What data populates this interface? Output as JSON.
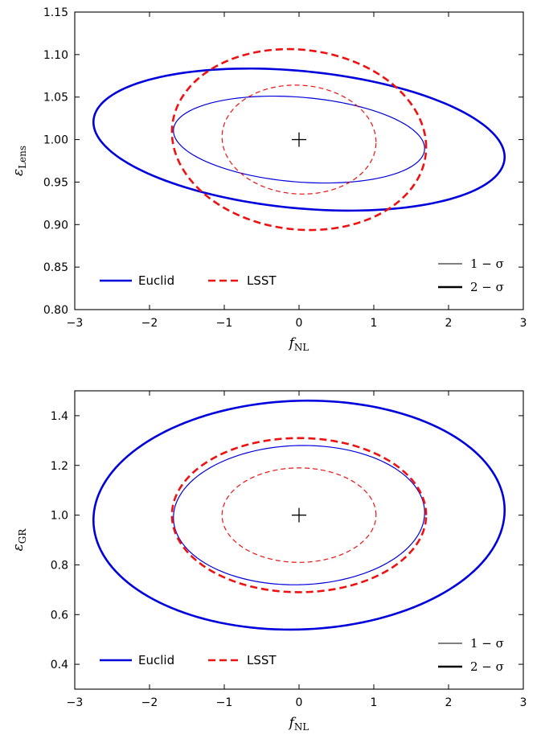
{
  "chart_data": [
    {
      "type": "contour",
      "xlabel": "f_NL",
      "xlabel_main": "f",
      "xlabel_sub": "NL",
      "ylabel": "ε_Lens",
      "ylabel_main": "ε",
      "ylabel_sub": "Lens",
      "xlim": [
        -3,
        3
      ],
      "ylim": [
        0.8,
        1.15
      ],
      "xticks": [
        -3,
        -2,
        -1,
        0,
        1,
        2,
        3
      ],
      "yticks": [
        0.8,
        0.85,
        0.9,
        0.95,
        1.0,
        1.05,
        1.1,
        1.15
      ],
      "ytick_decimals": 2,
      "fiducial": {
        "x": 0,
        "y": 1.0
      },
      "legend": {
        "position": "lower-left",
        "entries": [
          {
            "label": "Euclid",
            "color": "#0000dd",
            "style": "solid"
          },
          {
            "label": "LSST",
            "color": "#ee1111",
            "style": "dashed"
          }
        ]
      },
      "sigma_legend": {
        "position": "lower-right",
        "entries": [
          {
            "label": "1 − σ",
            "weight": "thin"
          },
          {
            "label": "2 − σ",
            "weight": "thick"
          }
        ]
      },
      "series": [
        {
          "survey": "Euclid",
          "sigma": 2,
          "color": "#0000dd",
          "style": "solid",
          "x_range": [
            -2.75,
            2.75
          ],
          "y_range": [
            0.919,
            1.081
          ],
          "y_at_x_extremes": [
            1.021,
            0.98
          ]
        },
        {
          "survey": "Euclid",
          "sigma": 1,
          "color": "#0000dd",
          "style": "solid",
          "x_range": [
            -1.68,
            1.68
          ],
          "y_range": [
            0.95,
            1.05
          ],
          "y_at_x_extremes": [
            1.01,
            0.989
          ]
        },
        {
          "survey": "LSST",
          "sigma": 2,
          "color": "#ee1111",
          "style": "dashed",
          "x_range": [
            -1.7,
            1.7
          ],
          "y_range": [
            0.894,
            1.106
          ],
          "y_at_x_extremes": [
            1.009,
            0.991
          ]
        },
        {
          "survey": "LSST",
          "sigma": 1,
          "color": "#ee1111",
          "style": "dashed",
          "x_range": [
            -1.03,
            1.03
          ],
          "y_range": [
            0.936,
            1.064
          ],
          "y_at_x_extremes": [
            1.003,
            0.997
          ]
        }
      ]
    },
    {
      "type": "contour",
      "xlabel": "f_NL",
      "xlabel_main": "f",
      "xlabel_sub": "NL",
      "ylabel": "ε_GR",
      "ylabel_main": "ε",
      "ylabel_sub": "GR",
      "xlim": [
        -3,
        3
      ],
      "ylim": [
        0.3,
        1.5
      ],
      "xticks": [
        -3,
        -2,
        -1,
        0,
        1,
        2,
        3
      ],
      "yticks": [
        0.4,
        0.6,
        0.8,
        1.0,
        1.2,
        1.4
      ],
      "ytick_decimals": 1,
      "fiducial": {
        "x": 0,
        "y": 1.0
      },
      "legend": {
        "position": "lower-left",
        "entries": [
          {
            "label": "Euclid",
            "color": "#0000dd",
            "style": "solid"
          },
          {
            "label": "LSST",
            "color": "#ee1111",
            "style": "dashed"
          }
        ]
      },
      "sigma_legend": {
        "position": "lower-right",
        "entries": [
          {
            "label": "1 − σ",
            "weight": "thin"
          },
          {
            "label": "2 − σ",
            "weight": "thick"
          }
        ]
      },
      "series": [
        {
          "survey": "Euclid",
          "sigma": 2,
          "color": "#0000dd",
          "style": "solid",
          "x_range": [
            -2.75,
            2.75
          ],
          "y_range": [
            0.54,
            1.46
          ],
          "y_at_x_extremes": [
            0.98,
            1.02
          ]
        },
        {
          "survey": "Euclid",
          "sigma": 1,
          "color": "#0000dd",
          "style": "solid",
          "x_range": [
            -1.68,
            1.68
          ],
          "y_range": [
            0.72,
            1.28
          ],
          "y_at_x_extremes": [
            0.99,
            1.01
          ]
        },
        {
          "survey": "LSST",
          "sigma": 2,
          "color": "#ee1111",
          "style": "dashed",
          "x_range": [
            -1.7,
            1.7
          ],
          "y_range": [
            0.69,
            1.31
          ],
          "y_at_x_extremes": [
            1.0,
            1.0
          ]
        },
        {
          "survey": "LSST",
          "sigma": 1,
          "color": "#ee1111",
          "style": "dashed",
          "x_range": [
            -1.03,
            1.03
          ],
          "y_range": [
            0.81,
            1.19
          ],
          "y_at_x_extremes": [
            1.0,
            1.0
          ]
        }
      ]
    }
  ]
}
